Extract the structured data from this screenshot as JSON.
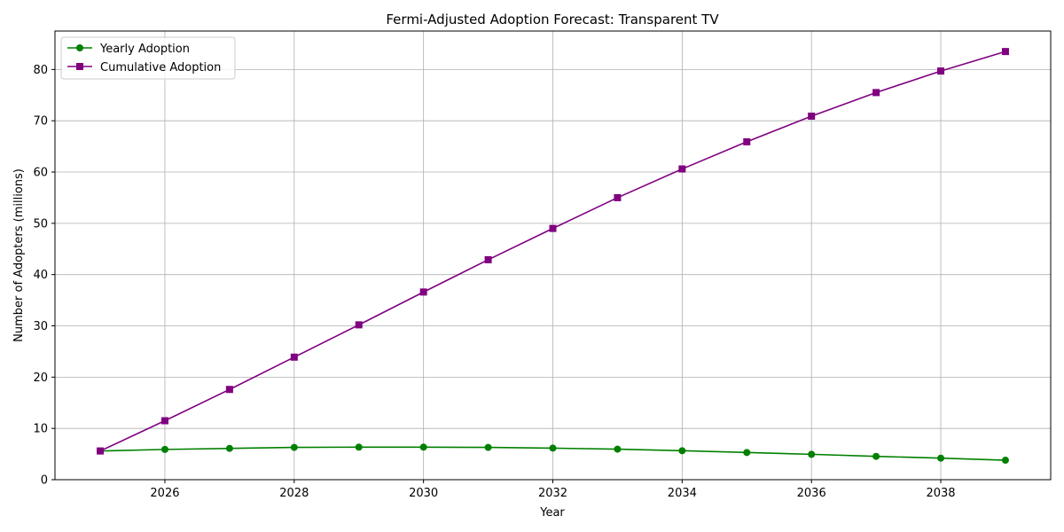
{
  "chart_data": {
    "type": "line",
    "title": "Fermi-Adjusted Adoption Forecast: Transparent TV",
    "xlabel": "Year",
    "ylabel": "Number of Adopters (millions)",
    "x": [
      2025,
      2026,
      2027,
      2028,
      2029,
      2030,
      2031,
      2032,
      2033,
      2034,
      2035,
      2036,
      2037,
      2038,
      2039
    ],
    "xlim": [
      2024.3,
      2039.7
    ],
    "ylim": [
      0,
      87.5
    ],
    "xticks": [
      2026,
      2028,
      2030,
      2032,
      2034,
      2036,
      2038
    ],
    "yticks": [
      0,
      10,
      20,
      30,
      40,
      50,
      60,
      70,
      80
    ],
    "grid": true,
    "legend_position": "top-left",
    "series": [
      {
        "name": "Yearly Adoption",
        "color": "#008000",
        "marker": "circle",
        "values": [
          5.6,
          5.9,
          6.1,
          6.3,
          6.35,
          6.35,
          6.3,
          6.15,
          5.95,
          5.65,
          5.3,
          4.95,
          4.55,
          4.2,
          3.8
        ]
      },
      {
        "name": "Cumulative Adoption",
        "color": "#800080",
        "marker": "square",
        "values": [
          5.6,
          11.5,
          17.6,
          23.9,
          30.2,
          36.6,
          42.9,
          49.0,
          55.0,
          60.6,
          65.9,
          70.9,
          75.5,
          79.7,
          83.5
        ]
      }
    ]
  }
}
